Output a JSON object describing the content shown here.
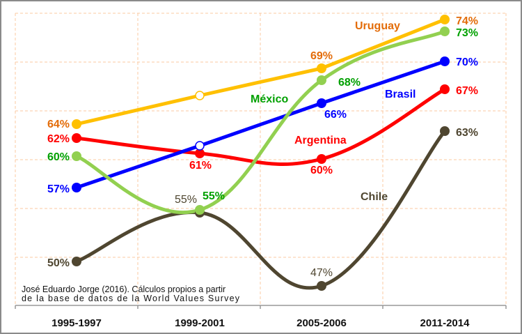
{
  "chart_data": {
    "type": "line",
    "title": "",
    "xlabel": "",
    "ylabel": "",
    "categories": [
      "1995-1997",
      "1999-2001",
      "2005-2006",
      "2011-2014"
    ],
    "ylim": [
      45,
      75
    ],
    "grid": true,
    "source_note": [
      "José Eduardo Jorge (2016). Cálculos propios a partir",
      "de la base de datos de la World Values Survey"
    ],
    "series": [
      {
        "name": "Uruguay",
        "color": "#FFC000",
        "label_color": "#E36C09",
        "values": [
          64,
          67,
          69,
          74
        ],
        "labels": [
          "64%",
          null,
          "69%",
          "74%"
        ],
        "hollow": [
          false,
          true,
          false,
          false
        ],
        "smooth": false
      },
      {
        "name": "México",
        "color": "#92D050",
        "label_color": "#00A000",
        "values": [
          60,
          55,
          68,
          73
        ],
        "labels": [
          "60%",
          "55%",
          "68%",
          "73%"
        ],
        "hollow": [
          false,
          false,
          false,
          false
        ],
        "smooth": true
      },
      {
        "name": "Brasil",
        "color": "#0000FF",
        "label_color": "#0000FF",
        "values": [
          57,
          62,
          66,
          70
        ],
        "labels": [
          "57%",
          null,
          "66%",
          "70%"
        ],
        "hollow": [
          false,
          true,
          false,
          false
        ],
        "smooth": false
      },
      {
        "name": "Argentina",
        "color": "#FF0000",
        "label_color": "#FF0000",
        "values": [
          62,
          61,
          60,
          67
        ],
        "labels": [
          "62%",
          "61%",
          "60%",
          "67%"
        ],
        "hollow": [
          false,
          false,
          false,
          false
        ],
        "smooth": true
      },
      {
        "name": "Chile",
        "color": "#4F4630",
        "label_color": "#4F4630",
        "values": [
          50,
          55,
          47,
          63
        ],
        "labels": [
          "50%",
          "55%",
          "47%",
          "63%"
        ],
        "hollow": [
          false,
          false,
          false,
          false
        ],
        "smooth": true
      }
    ]
  }
}
